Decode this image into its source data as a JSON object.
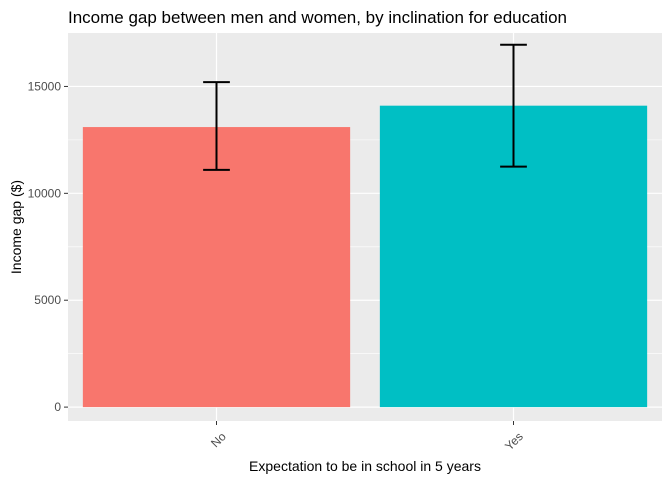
{
  "chart_data": {
    "type": "bar",
    "title": "Income gap between men and women, by inclination for education",
    "xlabel": "Expectation to be in school in 5 years",
    "ylabel": "Income gap ($)",
    "categories": [
      "No",
      "Yes"
    ],
    "values": [
      13100,
      14100
    ],
    "error_low": [
      11100,
      11250
    ],
    "error_high": [
      15200,
      16950
    ],
    "colors": [
      "#F8766D",
      "#00BFC4"
    ],
    "ylim": [
      -650,
      17500
    ],
    "yticks": [
      0,
      5000,
      10000,
      15000
    ],
    "ytick_labels": [
      "0",
      "5000",
      "10000",
      "15000"
    ],
    "grid": true,
    "legend": "none",
    "panel_background": "#EBEBEB",
    "gridline_color": "#FFFFFF"
  }
}
